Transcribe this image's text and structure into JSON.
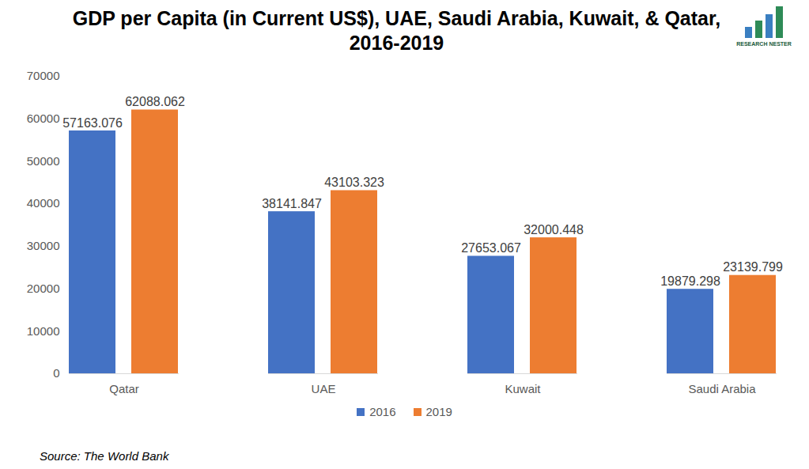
{
  "chart_data": {
    "type": "bar",
    "title": "GDP per Capita (in Current US$), UAE, Saudi Arabia, Kuwait, & Qatar, 2016-2019",
    "source": "Source: The World Bank",
    "logo_text": "RESEARCH NESTER",
    "categories": [
      "Qatar",
      "UAE",
      "Kuwait",
      "Saudi Arabia"
    ],
    "series": [
      {
        "name": "2016",
        "color": "#4472c4",
        "values": [
          57163.076,
          38141.847,
          27653.067,
          19879.298
        ]
      },
      {
        "name": "2019",
        "color": "#ed7d31",
        "values": [
          62088.062,
          43103.323,
          32000.448,
          23139.799
        ]
      }
    ],
    "ylim": [
      0,
      70000
    ],
    "yticks": [
      0,
      10000,
      20000,
      30000,
      40000,
      50000,
      60000,
      70000
    ],
    "grid": false,
    "legend": "bottom",
    "data_labels": true
  }
}
